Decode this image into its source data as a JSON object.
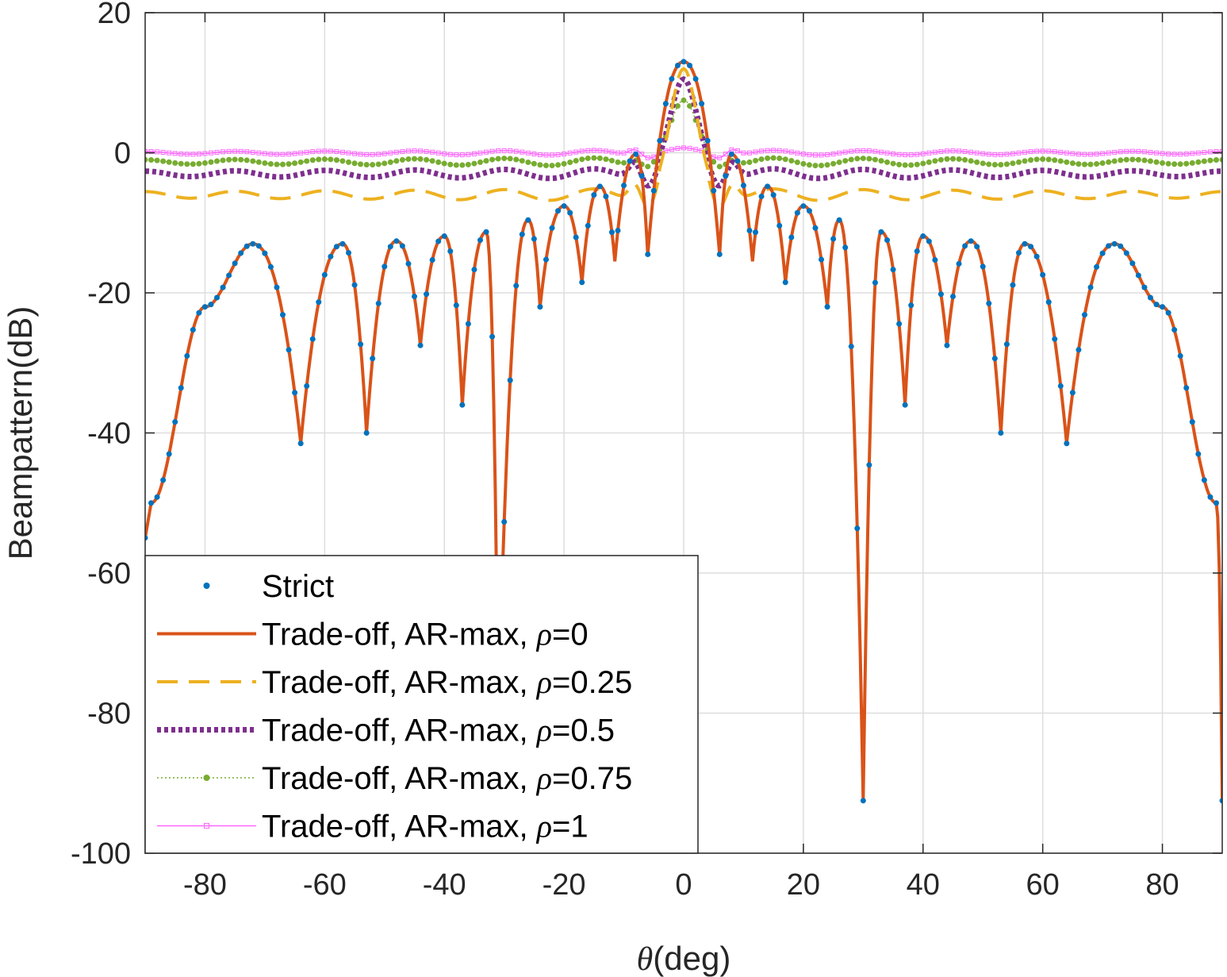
{
  "chart_data": {
    "type": "line",
    "title": "",
    "xlabel_symbol": "θ",
    "xlabel_unit": "(deg)",
    "ylabel": "Beampattern(dB)",
    "xlim": [
      -90,
      90
    ],
    "ylim": [
      -100,
      20
    ],
    "xticks": [
      -80,
      -60,
      -40,
      -20,
      0,
      20,
      40,
      60,
      80
    ],
    "yticks": [
      -100,
      -80,
      -60,
      -40,
      -20,
      0,
      20
    ],
    "grid": true,
    "legend_position": "bottom-left",
    "x_sampling": {
      "start": -90,
      "stop": 90,
      "step": 1
    },
    "series": [
      {
        "name_prefix": "Strict",
        "name_param": "",
        "color": "#0072BD",
        "style": "markers",
        "envelope_peaks": [
          [
            -89,
            -50
          ],
          [
            -80,
            -22
          ],
          [
            -72,
            -13
          ],
          [
            -57,
            -13
          ],
          [
            -48,
            -12.6
          ],
          [
            -40,
            -11.9
          ],
          [
            -33,
            -11.3
          ],
          [
            -26,
            -9.6
          ],
          [
            -20,
            -7.6
          ],
          [
            -14,
            -4.8
          ],
          [
            -8,
            -0.2
          ],
          [
            0,
            13
          ],
          [
            8,
            -0.2
          ],
          [
            14,
            -4.8
          ],
          [
            20,
            -7.6
          ],
          [
            26,
            -9.6
          ],
          [
            33,
            -11.3
          ],
          [
            40,
            -11.9
          ],
          [
            48,
            -12.6
          ],
          [
            57,
            -13
          ],
          [
            72,
            -13
          ],
          [
            80,
            -22
          ],
          [
            89,
            -50
          ]
        ],
        "nulls": [
          [
            -64,
            -41.5
          ],
          [
            -53,
            -40
          ],
          [
            -44,
            -27.5
          ],
          [
            -37,
            -36
          ],
          [
            -31,
            -80
          ],
          [
            -24,
            -22
          ],
          [
            -17,
            -18.5
          ],
          [
            -11.5,
            -15.5
          ],
          [
            -6,
            -14.5
          ],
          [
            6,
            -14.5
          ],
          [
            11.5,
            -15.5
          ],
          [
            17,
            -18.5
          ],
          [
            24,
            -22
          ],
          [
            30,
            -92.5
          ],
          [
            37,
            -36
          ],
          [
            44,
            -27.5
          ],
          [
            53,
            -40
          ],
          [
            64,
            -41.5
          ],
          [
            90,
            -92.5
          ]
        ]
      },
      {
        "name_prefix": "Trade-off, AR-max, ",
        "name_param": "=0",
        "color": "#D95319",
        "style": "solid",
        "same_as": "Strict"
      },
      {
        "name_prefix": "Trade-off, AR-max, ",
        "name_param": "=0.25",
        "color": "#EDB120",
        "style": "dashed",
        "baseline": -6,
        "mainlobe_peak": 12,
        "ripple_amplitude": 1.2
      },
      {
        "name_prefix": "Trade-off, AR-max, ",
        "name_param": "=0.5",
        "color": "#7E2F8E",
        "style": "dotted-thick",
        "baseline": -3,
        "mainlobe_peak": 10.5,
        "ripple_amplitude": 1.0
      },
      {
        "name_prefix": "Trade-off, AR-max, ",
        "name_param": "=0.75",
        "color": "#77AC30",
        "style": "dotted-markers",
        "baseline": -1.3,
        "mainlobe_peak": 7.5,
        "ripple_amplitude": 0.8
      },
      {
        "name_prefix": "Trade-off, AR-max, ",
        "name_param": "=1",
        "color": "#FF66FF",
        "style": "thin-square-markers",
        "baseline": 0,
        "mainlobe_peak": 0.7,
        "ripple_amplitude": 0.5
      }
    ]
  }
}
